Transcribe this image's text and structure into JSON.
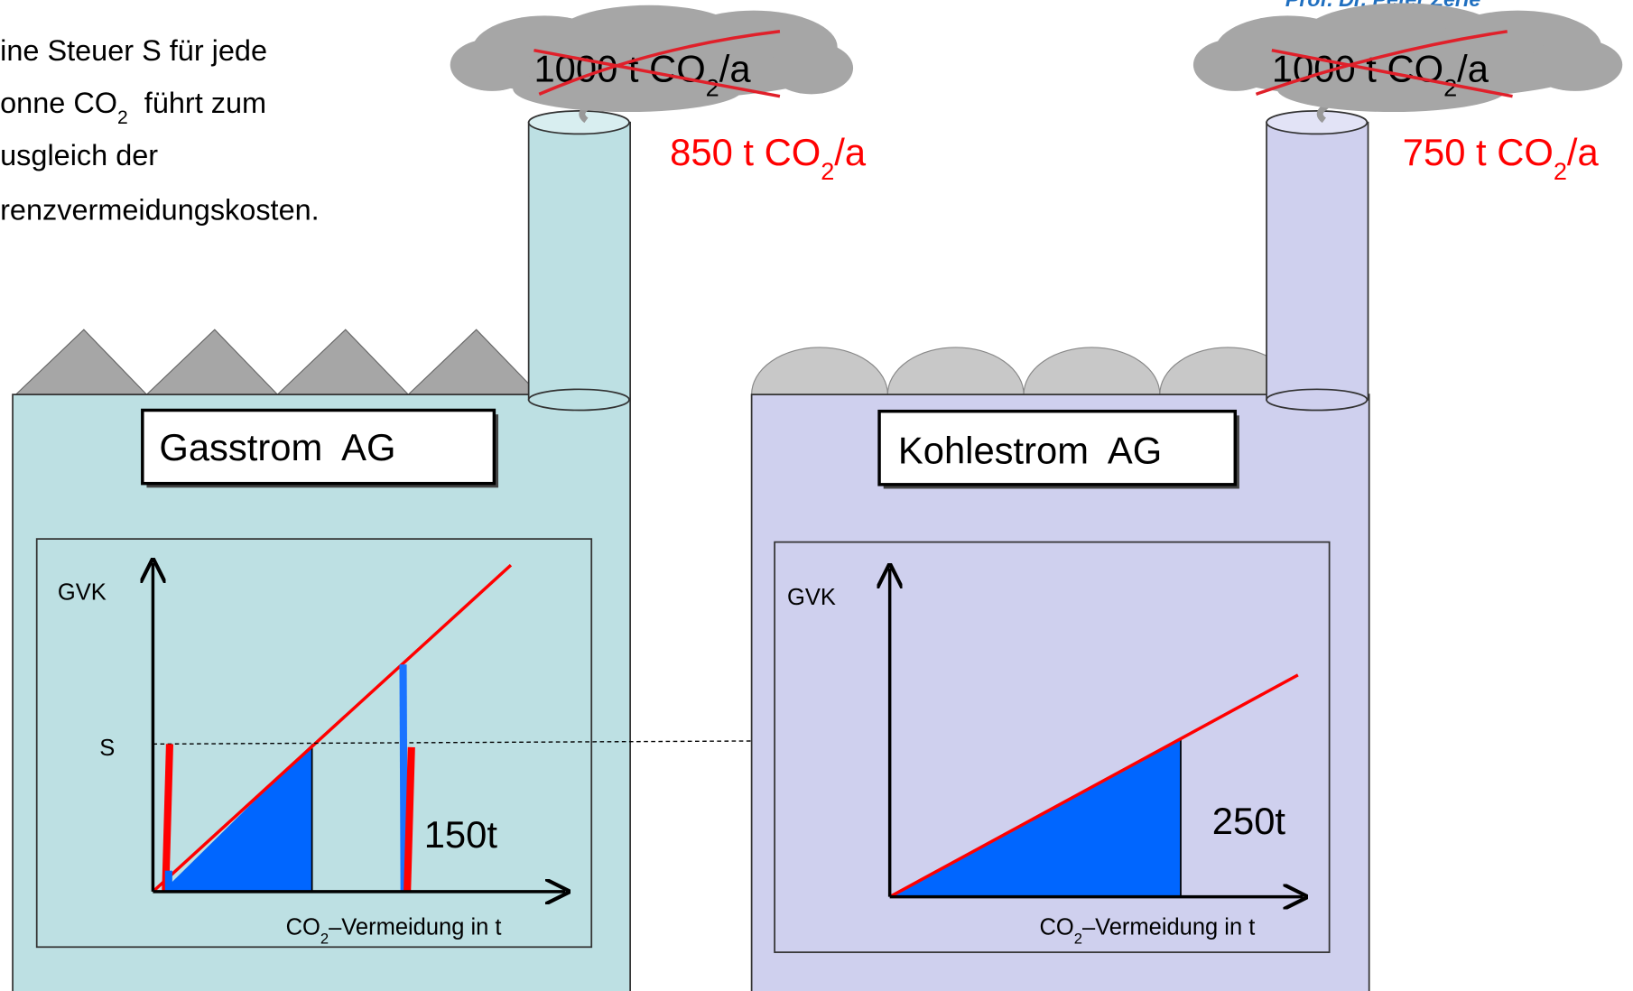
{
  "author": "Prof. Dr. Peter Zerle",
  "intro": [
    [
      "ine Steuer S für jede"
    ],
    [
      "onne CO",
      "2",
      "  führt zum"
    ],
    [
      "usgleich der"
    ],
    [
      "renzvermeidungskosten."
    ]
  ],
  "factories": [
    {
      "name": "Gasstrom  AG",
      "old_emission": [
        "1000 t CO",
        "2",
        "/a"
      ],
      "new_emission": [
        "850 t CO",
        "2",
        "/a"
      ],
      "y_label": "GVK",
      "tax_label": "S",
      "abatement": "150t",
      "x_label": [
        "CO",
        "2",
        "–Vermeidung in t"
      ]
    },
    {
      "name": "Kohlestrom  AG",
      "old_emission": [
        "1000 t CO",
        "2",
        "/a"
      ],
      "new_emission": [
        "750 t CO",
        "2",
        "/a"
      ],
      "y_label": "GVK",
      "abatement": "250t",
      "x_label": [
        "CO",
        "2",
        "–Vermeidung in t"
      ]
    }
  ]
}
